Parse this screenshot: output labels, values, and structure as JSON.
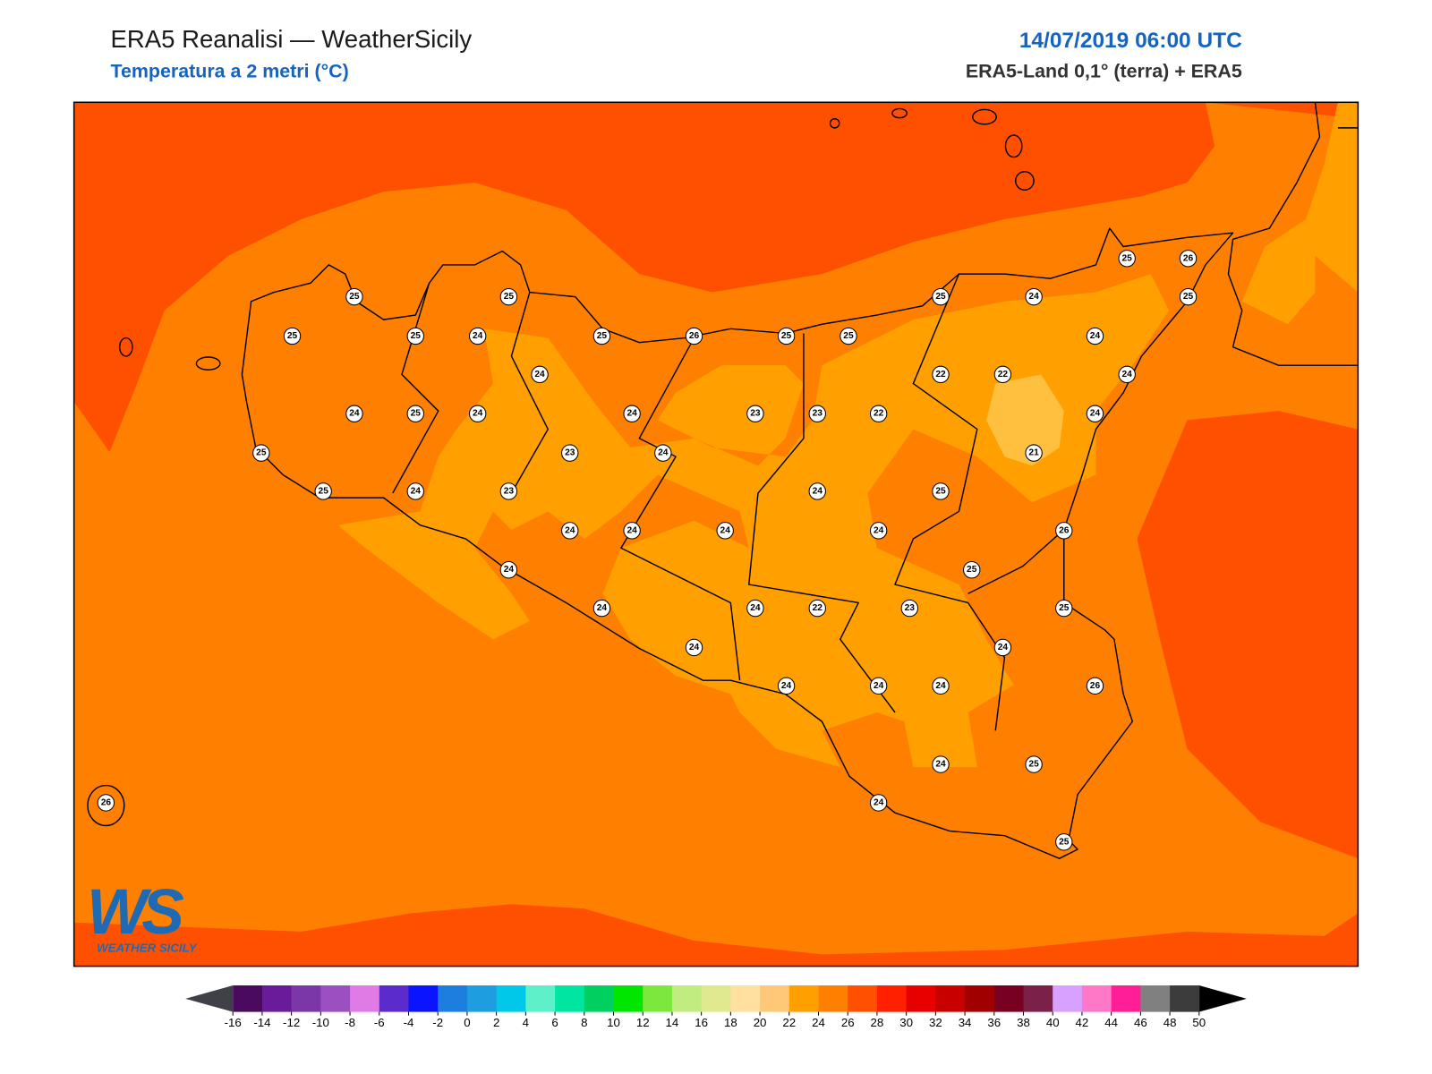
{
  "header": {
    "title": "ERA5 Reanalisi — WeatherSicily",
    "subtitle": "Temperatura a 2 metri (°C)",
    "datetime": "14/07/2019 06:00 UTC",
    "source": "ERA5-Land 0,1° (terra) + ERA5"
  },
  "logo": {
    "mark": "WS",
    "name": "WEATHER SICILY"
  },
  "stations": [
    25,
    26,
    25,
    25,
    25,
    24,
    25,
    25,
    25,
    24,
    25,
    26,
    25,
    25,
    24,
    24,
    22,
    22,
    24,
    24,
    25,
    24,
    24,
    23,
    23,
    22,
    24,
    25,
    23,
    24,
    21,
    25,
    24,
    23,
    24,
    25,
    24,
    24,
    24,
    24,
    26,
    24,
    25,
    24,
    24,
    22,
    23,
    25,
    24,
    24,
    24,
    24,
    24,
    26,
    24,
    25,
    26,
    24,
    25
  ],
  "colorbar": {
    "ticks": [
      -16,
      -14,
      -12,
      -10,
      -8,
      -6,
      -4,
      -2,
      0,
      2,
      4,
      6,
      8,
      10,
      12,
      14,
      16,
      18,
      20,
      22,
      24,
      26,
      28,
      30,
      32,
      34,
      36,
      38,
      40,
      42,
      44,
      46,
      48,
      50
    ],
    "colors": [
      "#4a0a5e",
      "#6a1b9a",
      "#7b36a8",
      "#9c4fc0",
      "#e07be6",
      "#5c2bcc",
      "#0a14ff",
      "#1e7ee0",
      "#1e9ee0",
      "#00c8e6",
      "#5ef0c8",
      "#00e6a0",
      "#00d060",
      "#00e600",
      "#7de83c",
      "#c0ec80",
      "#e0e890",
      "#ffe0a0",
      "#ffc878",
      "#ffa000",
      "#ff8000",
      "#ff5000",
      "#ff2000",
      "#e60000",
      "#c80000",
      "#a00000",
      "#780020",
      "#7b2046",
      "#d8a0ff",
      "#ff78c8",
      "#ff1e96",
      "#808080",
      "#3c3c3c"
    ],
    "under_color": "#404048",
    "over_color": "#000000"
  }
}
